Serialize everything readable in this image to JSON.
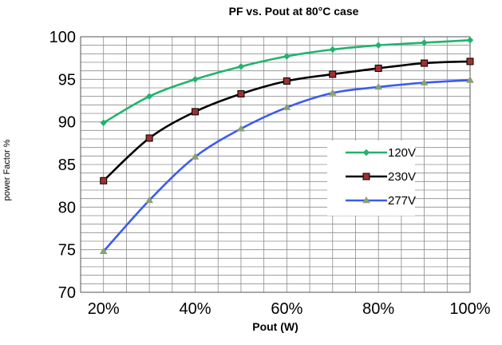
{
  "chart_data": {
    "type": "line",
    "title": "PF vs. Pout at 80°C case",
    "xlabel": "Pout (W)",
    "ylabel": "power Factor %",
    "x": [
      20,
      30,
      40,
      50,
      60,
      70,
      80,
      90,
      100
    ],
    "x_ticks": [
      "20%",
      "40%",
      "60%",
      "80%",
      "100%"
    ],
    "y_ticks": [
      "70",
      "75",
      "80",
      "85",
      "90",
      "95",
      "100"
    ],
    "xlim": [
      15,
      100
    ],
    "ylim": [
      70,
      100
    ],
    "grid": true,
    "legend_position": "right",
    "series": [
      {
        "name": "120V",
        "color": "#21b36e",
        "marker": "diamond",
        "values": [
          89.9,
          93.0,
          95.0,
          96.5,
          97.7,
          98.5,
          99.0,
          99.3,
          99.6
        ]
      },
      {
        "name": "230V",
        "color": "#000000",
        "marker": "square",
        "values": [
          83.1,
          88.1,
          91.2,
          93.3,
          94.8,
          95.6,
          96.3,
          96.9,
          97.1
        ]
      },
      {
        "name": "277V",
        "color": "#3b5bf0",
        "marker": "triangle",
        "values": [
          74.8,
          80.8,
          85.9,
          89.2,
          91.7,
          93.4,
          94.1,
          94.6,
          94.9
        ]
      }
    ]
  }
}
